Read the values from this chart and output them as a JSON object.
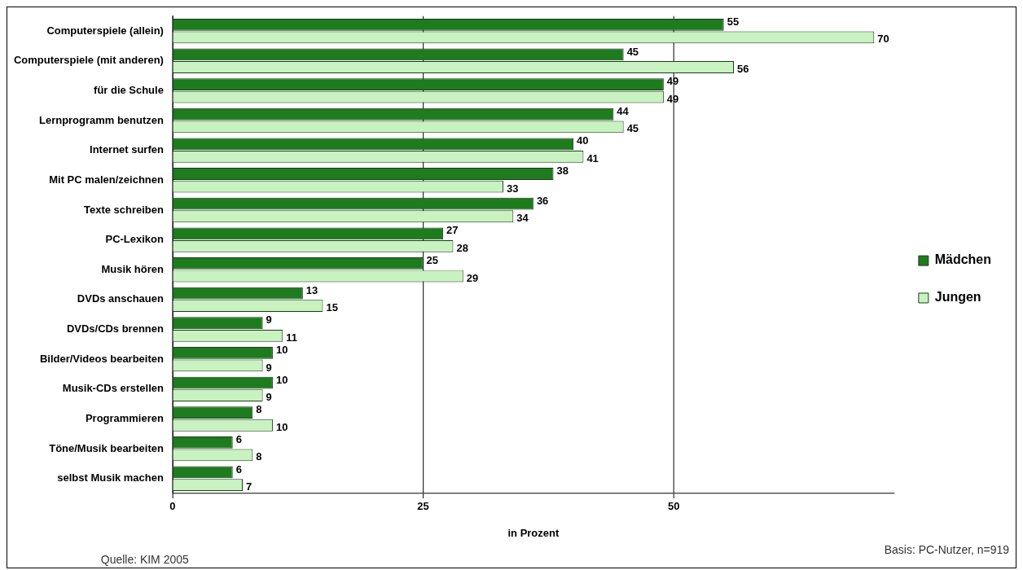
{
  "chart_data": {
    "type": "bar",
    "orientation": "horizontal",
    "categories": [
      "Computerspiele (allein)",
      "Computerspiele (mit anderen)",
      "für die Schule",
      "Lernprogramm benutzen",
      "Internet surfen",
      "Mit PC malen/zeichnen",
      "Texte schreiben",
      "PC-Lexikon",
      "Musik hören",
      "DVDs anschauen",
      "DVDs/CDs brennen",
      "Bilder/Videos bearbeiten",
      "Musik-CDs erstellen",
      "Programmieren",
      "Töne/Musik bearbeiten",
      "selbst Musik machen"
    ],
    "series": [
      {
        "name": "Mädchen",
        "color": "#1e7b1e",
        "values": [
          55,
          45,
          49,
          44,
          40,
          38,
          36,
          27,
          25,
          13,
          9,
          10,
          10,
          8,
          6,
          6
        ]
      },
      {
        "name": "Jungen",
        "color": "#c8f2c0",
        "values": [
          70,
          56,
          49,
          45,
          41,
          33,
          34,
          28,
          29,
          15,
          11,
          9,
          9,
          10,
          8,
          7
        ]
      }
    ],
    "xlim": [
      0,
      72
    ],
    "xticks": [
      0,
      25,
      50
    ],
    "xlabel": "in Prozent",
    "grid": "x",
    "legend": "right",
    "data_labels": true,
    "annotations": [
      "Quelle: KIM 2005",
      "Basis: PC-Nutzer, n=919"
    ]
  }
}
